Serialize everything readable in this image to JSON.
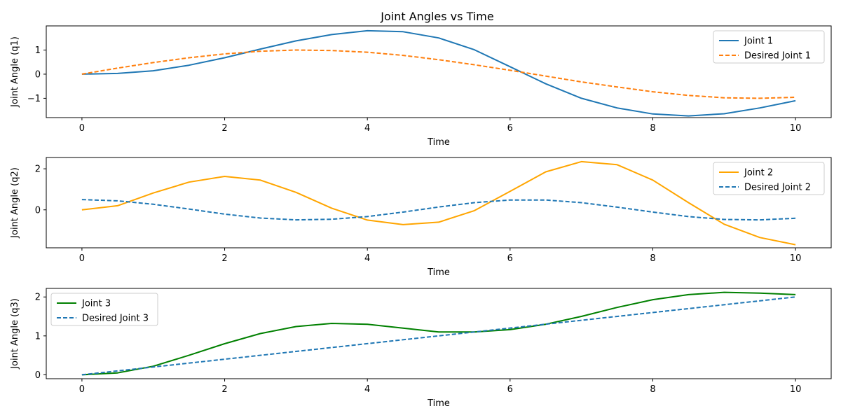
{
  "figure_title": "Joint Angles vs Time",
  "chart_data": [
    {
      "type": "line",
      "xlabel": "Time",
      "ylabel": "Joint Angle (q1)",
      "xlim": [
        -0.5,
        10.5
      ],
      "ylim": [
        -1.8,
        2.0
      ],
      "xticks": [
        0,
        2,
        4,
        6,
        8,
        10
      ],
      "yticks": [
        -1,
        0,
        1
      ],
      "ytick_labels": [
        "−1",
        "0",
        "1"
      ],
      "grid": false,
      "legend": "top-right",
      "series": [
        {
          "name": "Joint 1",
          "color": "#1f77b4",
          "style": "solid",
          "x": [
            0,
            0.5,
            1,
            1.5,
            2,
            2.5,
            3,
            3.5,
            4,
            4.5,
            5,
            5.5,
            6,
            6.5,
            7,
            7.5,
            8,
            8.5,
            9,
            9.5,
            10
          ],
          "y": [
            0,
            0.03,
            0.14,
            0.37,
            0.68,
            1.04,
            1.38,
            1.64,
            1.8,
            1.76,
            1.5,
            1.01,
            0.31,
            -0.4,
            -1.0,
            -1.4,
            -1.65,
            -1.73,
            -1.64,
            -1.4,
            -1.1
          ]
        },
        {
          "name": "Desired Joint 1",
          "color": "#ff7f0e",
          "style": "dashed",
          "x": [
            0,
            0.5,
            1,
            1.5,
            2,
            2.5,
            3,
            3.5,
            4,
            4.5,
            5,
            5.5,
            6,
            6.5,
            7,
            7.5,
            8,
            8.5,
            9,
            9.5,
            10
          ],
          "y": [
            0,
            0.25,
            0.48,
            0.68,
            0.84,
            0.95,
            1.0,
            0.98,
            0.91,
            0.78,
            0.6,
            0.39,
            0.16,
            -0.08,
            -0.32,
            -0.53,
            -0.73,
            -0.88,
            -0.98,
            -1.0,
            -0.96
          ]
        }
      ]
    },
    {
      "type": "line",
      "xlabel": "Time",
      "ylabel": "Joint Angle (q2)",
      "xlim": [
        -0.5,
        10.5
      ],
      "ylim": [
        -1.85,
        2.55
      ],
      "xticks": [
        0,
        2,
        4,
        6,
        8,
        10
      ],
      "yticks": [
        0,
        2
      ],
      "ytick_labels": [
        "0",
        "2"
      ],
      "grid": false,
      "legend": "top-right",
      "series": [
        {
          "name": "Joint 2",
          "color": "#ffa500",
          "style": "solid",
          "x": [
            0,
            0.5,
            1,
            1.5,
            2,
            2.5,
            3,
            3.5,
            4,
            4.5,
            5,
            5.5,
            6,
            6.5,
            7,
            7.5,
            8,
            8.5,
            9,
            9.5,
            10
          ],
          "y": [
            0,
            0.2,
            0.82,
            1.35,
            1.63,
            1.45,
            0.85,
            0.08,
            -0.5,
            -0.72,
            -0.6,
            -0.04,
            0.9,
            1.85,
            2.35,
            2.2,
            1.45,
            0.35,
            -0.7,
            -1.35,
            -1.7
          ]
        },
        {
          "name": "Desired Joint 2",
          "color": "#1f77b4",
          "style": "dashed",
          "x": [
            0,
            0.5,
            1,
            1.5,
            2,
            2.5,
            3,
            3.5,
            4,
            4.5,
            5,
            5.5,
            6,
            6.5,
            7,
            7.5,
            8,
            8.5,
            9,
            9.5,
            10
          ],
          "y": [
            0.5,
            0.44,
            0.27,
            0.04,
            -0.21,
            -0.4,
            -0.49,
            -0.46,
            -0.33,
            -0.11,
            0.14,
            0.35,
            0.48,
            0.48,
            0.35,
            0.13,
            -0.11,
            -0.33,
            -0.47,
            -0.49,
            -0.41
          ]
        }
      ]
    },
    {
      "type": "line",
      "xlabel": "Time",
      "ylabel": "Joint Angle (q3)",
      "xlim": [
        -0.5,
        10.5
      ],
      "ylim": [
        -0.1,
        2.22
      ],
      "xticks": [
        0,
        2,
        4,
        6,
        8,
        10
      ],
      "yticks": [
        0,
        1,
        2
      ],
      "ytick_labels": [
        "0",
        "1",
        "2"
      ],
      "grid": false,
      "legend": "top-left",
      "series": [
        {
          "name": "Joint 3",
          "color": "#008000",
          "style": "solid",
          "x": [
            0,
            0.5,
            1,
            1.5,
            2,
            2.5,
            3,
            3.5,
            4,
            4.5,
            5,
            5.5,
            6,
            6.5,
            7,
            7.5,
            8,
            8.5,
            9,
            9.5,
            10
          ],
          "y": [
            0,
            0.05,
            0.22,
            0.5,
            0.8,
            1.06,
            1.24,
            1.32,
            1.3,
            1.2,
            1.1,
            1.1,
            1.16,
            1.3,
            1.5,
            1.73,
            1.93,
            2.06,
            2.12,
            2.1,
            2.06
          ]
        },
        {
          "name": "Desired Joint 3",
          "color": "#1f77b4",
          "style": "dashed",
          "x": [
            0,
            10
          ],
          "y": [
            0,
            2.0
          ]
        }
      ]
    }
  ]
}
